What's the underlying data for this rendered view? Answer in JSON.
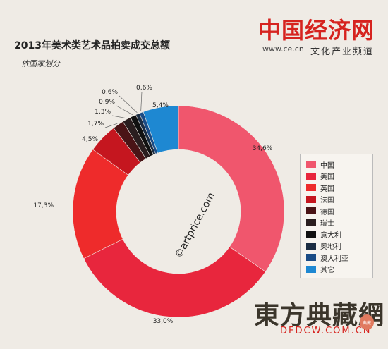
{
  "header": {
    "logo_text": "中国经济网",
    "site_url": "www.ce.cn",
    "channel": "文化产业频道"
  },
  "chart_data": {
    "type": "pie",
    "donut": true,
    "title": "2013年美术类艺术品拍卖成交总额",
    "subtitle": "依国家划分",
    "source_label": "©artprice.com",
    "legend_position": "right",
    "slices": [
      {
        "label": "中国",
        "value": 34.6,
        "value_label": "34,6%",
        "color": "#f0566d"
      },
      {
        "label": "美国",
        "value": 33.0,
        "value_label": "33,0%",
        "color": "#e8263d"
      },
      {
        "label": "英国",
        "value": 17.3,
        "value_label": "17,3%",
        "color": "#ee2b2b"
      },
      {
        "label": "法国",
        "value": 4.5,
        "value_label": "4,5%",
        "color": "#c5161f"
      },
      {
        "label": "德国",
        "value": 1.7,
        "value_label": "1,7%",
        "color": "#4a1416"
      },
      {
        "label": "瑞士",
        "value": 1.3,
        "value_label": "1,3%",
        "color": "#2a1e1f"
      },
      {
        "label": "意大利",
        "value": 0.9,
        "value_label": "0,9%",
        "color": "#111111"
      },
      {
        "label": "奥地利",
        "value": 0.6,
        "value_label": "0,6%",
        "color": "#1b2d43"
      },
      {
        "label": "澳大利亚",
        "value": 0.6,
        "value_label": "0,6%",
        "color": "#1a4c86"
      },
      {
        "label": "其它",
        "value": 5.4,
        "value_label": "5,4%",
        "color": "#1e88d2"
      }
    ]
  },
  "footer": {
    "watermark_cn": "東方典藏網",
    "watermark_url": "DFDCW.COM.CN",
    "seal_text": "典藏"
  }
}
